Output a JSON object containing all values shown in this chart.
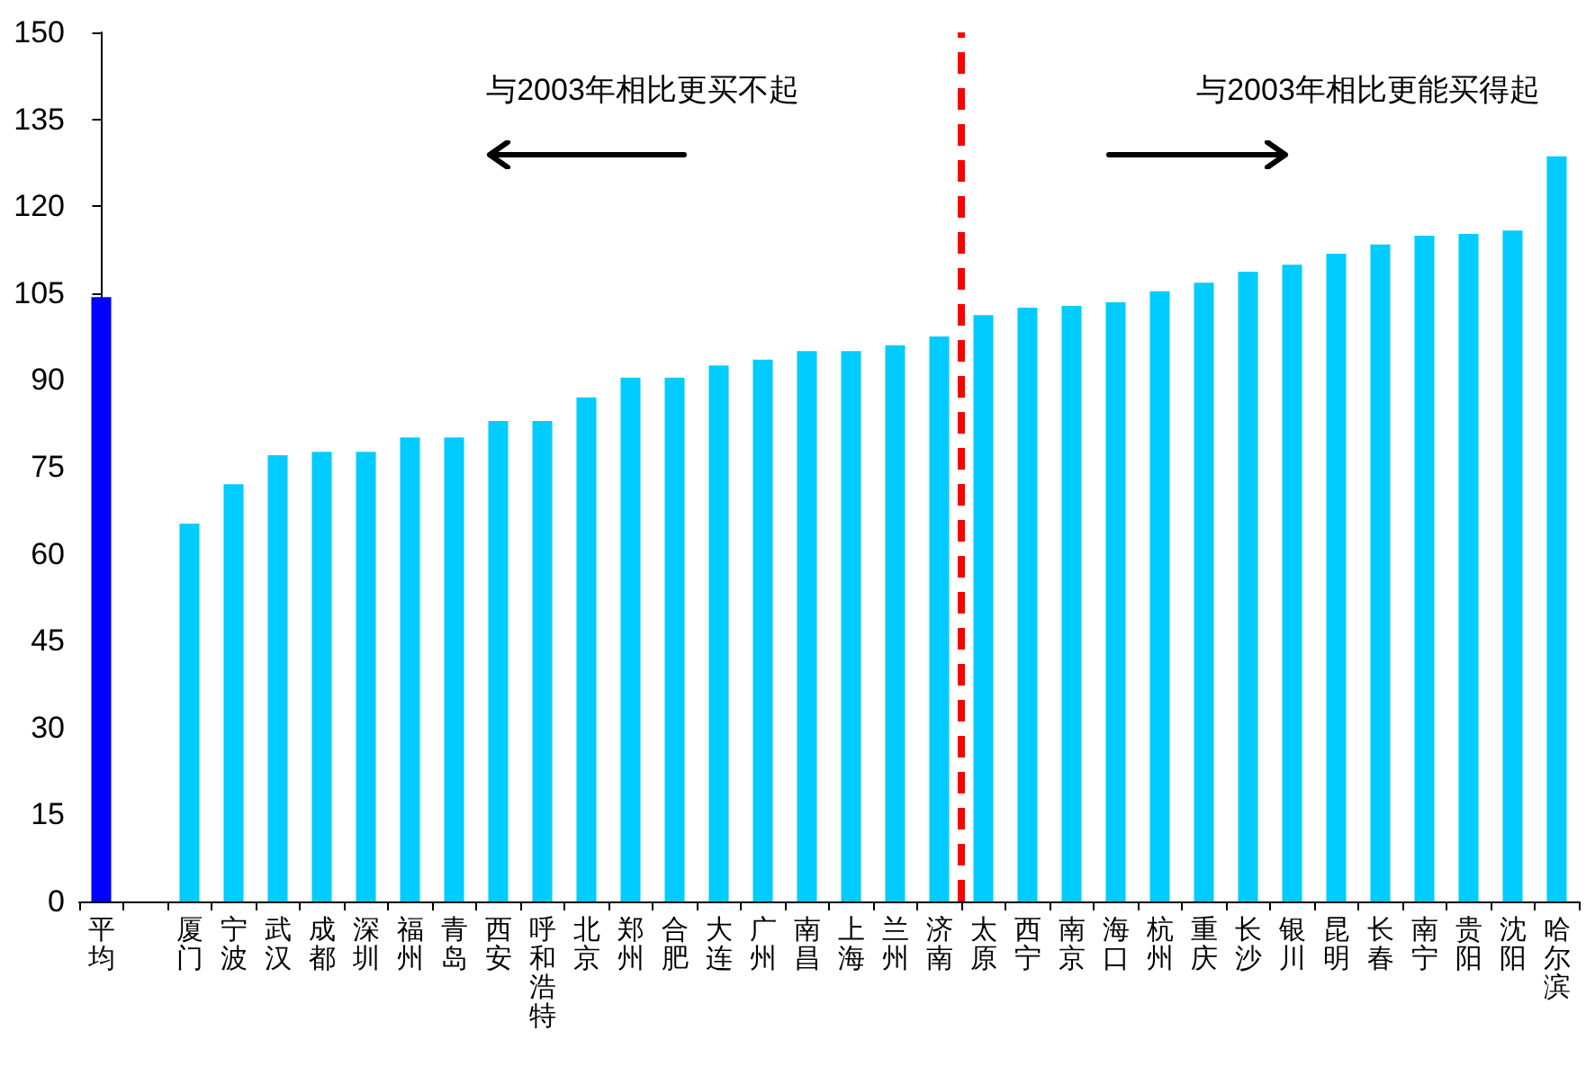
{
  "chart_data": {
    "type": "bar",
    "categories": [
      "平均",
      null,
      "厦门",
      "宁波",
      "武汉",
      "成都",
      "深圳",
      "福州",
      "青岛",
      "西安",
      "呼和浩特",
      "北京",
      "郑州",
      "合肥",
      "大连",
      "广州",
      "南昌",
      "上海",
      "兰州",
      "济南",
      "太原",
      "西宁",
      "南京",
      "海口",
      "杭州",
      "重庆",
      "长沙",
      "银川",
      "昆明",
      "长春",
      "南宁",
      "贵阳",
      "沈阳",
      "哈尔滨"
    ],
    "values": [
      104.3,
      null,
      65.2,
      72,
      77,
      77.6,
      77.6,
      80.1,
      80.1,
      82.9,
      82.9,
      87,
      90.4,
      90.4,
      92.5,
      93.5,
      95,
      95,
      96,
      97.5,
      101.2,
      102.5,
      102.8,
      103.4,
      105.3,
      106.8,
      108.7,
      109.9,
      111.8,
      113.4,
      114.9,
      115.2,
      115.8,
      128.6
    ],
    "colors": [
      "#0000ff",
      null,
      "#00ccff",
      "#00ccff",
      "#00ccff",
      "#00ccff",
      "#00ccff",
      "#00ccff",
      "#00ccff",
      "#00ccff",
      "#00ccff",
      "#00ccff",
      "#00ccff",
      "#00ccff",
      "#00ccff",
      "#00ccff",
      "#00ccff",
      "#00ccff",
      "#00ccff",
      "#00ccff",
      "#00ccff",
      "#00ccff",
      "#00ccff",
      "#00ccff",
      "#00ccff",
      "#00ccff",
      "#00ccff",
      "#00ccff",
      "#00ccff",
      "#00ccff",
      "#00ccff",
      "#00ccff",
      "#00ccff",
      "#00ccff"
    ],
    "ylim": [
      0,
      150
    ],
    "yticks": [
      0,
      15,
      30,
      45,
      60,
      75,
      90,
      105,
      120,
      135,
      150
    ],
    "grid": false,
    "ref_lines": [
      {
        "axis": "x",
        "value": "太原",
        "color": "#ff0000",
        "line_style": "dashed"
      }
    ],
    "annotations": [
      "与2003年相比更买不起",
      "与2003年相比更能买得起"
    ]
  }
}
